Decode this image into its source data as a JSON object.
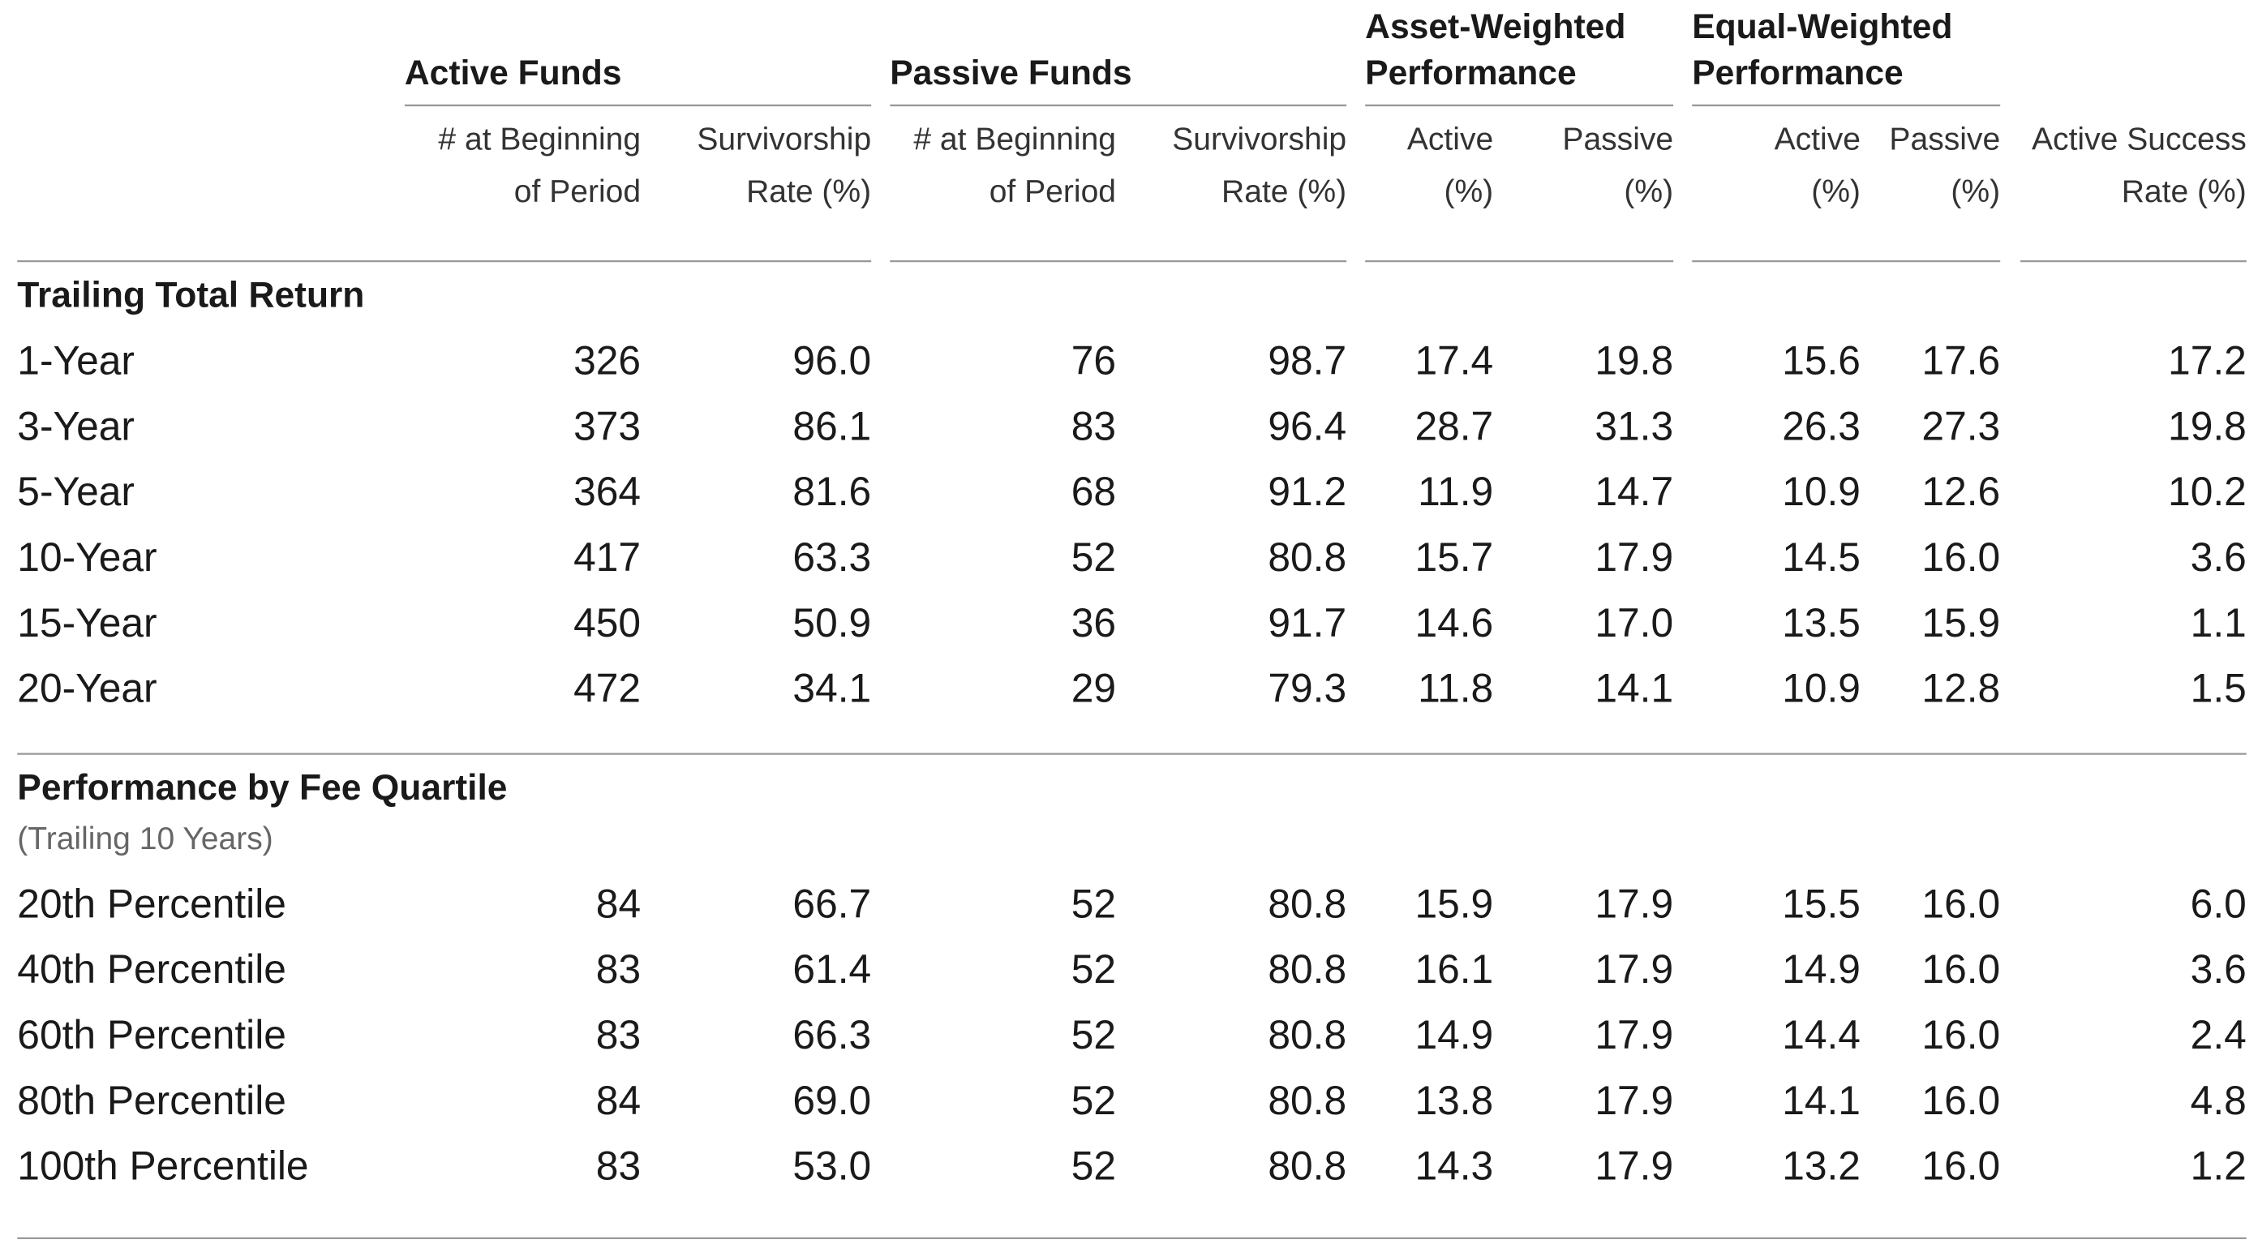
{
  "column_groups": [
    {
      "lines": [
        "Active Funds"
      ]
    },
    {
      "lines": [
        "Passive Funds"
      ]
    },
    {
      "lines": [
        "Asset-Weighted",
        "Performance"
      ]
    },
    {
      "lines": [
        "Equal-Weighted",
        "Performance"
      ]
    }
  ],
  "columns": [
    [
      "# at Beginning",
      "of Period"
    ],
    [
      "Survivorship",
      "Rate (%)"
    ],
    [
      "# at Beginning",
      "of Period"
    ],
    [
      "Survivorship",
      "Rate (%)"
    ],
    [
      "Active",
      "(%)"
    ],
    [
      "Passive",
      "(%)"
    ],
    [
      "Active",
      "(%)"
    ],
    [
      "Passive",
      "(%)"
    ],
    [
      "Active Success",
      "Rate (%)"
    ]
  ],
  "sections": [
    {
      "title": "Trailing Total Return",
      "rows": [
        {
          "label": "1-Year",
          "values": [
            "326",
            "96.0",
            "76",
            "98.7",
            "17.4",
            "19.8",
            "15.6",
            "17.6",
            "17.2"
          ]
        },
        {
          "label": "3-Year",
          "values": [
            "373",
            "86.1",
            "83",
            "96.4",
            "28.7",
            "31.3",
            "26.3",
            "27.3",
            "19.8"
          ]
        },
        {
          "label": "5-Year",
          "values": [
            "364",
            "81.6",
            "68",
            "91.2",
            "11.9",
            "14.7",
            "10.9",
            "12.6",
            "10.2"
          ]
        },
        {
          "label": "10-Year",
          "values": [
            "417",
            "63.3",
            "52",
            "80.8",
            "15.7",
            "17.9",
            "14.5",
            "16.0",
            "3.6"
          ]
        },
        {
          "label": "15-Year",
          "values": [
            "450",
            "50.9",
            "36",
            "91.7",
            "14.6",
            "17.0",
            "13.5",
            "15.9",
            "1.1"
          ]
        },
        {
          "label": "20-Year",
          "values": [
            "472",
            "34.1",
            "29",
            "79.3",
            "11.8",
            "14.1",
            "10.9",
            "12.8",
            "1.5"
          ]
        }
      ]
    },
    {
      "title": "Performance by Fee Quartile",
      "note": "(Trailing 10 Years)",
      "rows": [
        {
          "label": "20th Percentile",
          "values": [
            "84",
            "66.7",
            "52",
            "80.8",
            "15.9",
            "17.9",
            "15.5",
            "16.0",
            "6.0"
          ]
        },
        {
          "label": "40th Percentile",
          "values": [
            "83",
            "61.4",
            "52",
            "80.8",
            "16.1",
            "17.9",
            "14.9",
            "16.0",
            "3.6"
          ]
        },
        {
          "label": "60th Percentile",
          "values": [
            "83",
            "66.3",
            "52",
            "80.8",
            "14.9",
            "17.9",
            "14.4",
            "16.0",
            "2.4"
          ]
        },
        {
          "label": "80th Percentile",
          "values": [
            "84",
            "69.0",
            "52",
            "80.8",
            "13.8",
            "17.9",
            "14.1",
            "16.0",
            "4.8"
          ]
        },
        {
          "label": "100th Percentile",
          "values": [
            "83",
            "53.0",
            "52",
            "80.8",
            "14.3",
            "17.9",
            "13.2",
            "16.0",
            "1.2"
          ]
        }
      ]
    }
  ]
}
